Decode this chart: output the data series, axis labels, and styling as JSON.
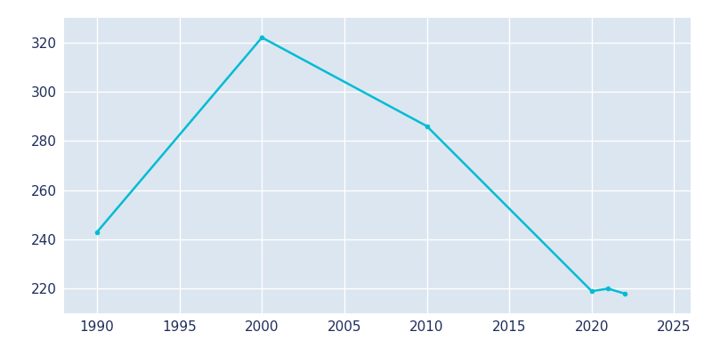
{
  "years": [
    1990,
    2000,
    2010,
    2020,
    2021,
    2022
  ],
  "population": [
    243,
    322,
    286,
    219,
    220,
    218
  ],
  "line_color": "#00bcd4",
  "bg_color": "#ffffff",
  "plot_bg_color": "#dce6f0",
  "grid_color": "#ffffff",
  "xlabel": "",
  "ylabel": "",
  "xlim": [
    1988,
    2026
  ],
  "ylim": [
    210,
    330
  ],
  "yticks": [
    220,
    240,
    260,
    280,
    300,
    320
  ],
  "xticks": [
    1990,
    1995,
    2000,
    2005,
    2010,
    2015,
    2020,
    2025
  ],
  "line_width": 1.8,
  "marker": "o",
  "marker_size": 3,
  "tick_label_color": "#1f2d5a",
  "tick_label_fontsize": 11
}
